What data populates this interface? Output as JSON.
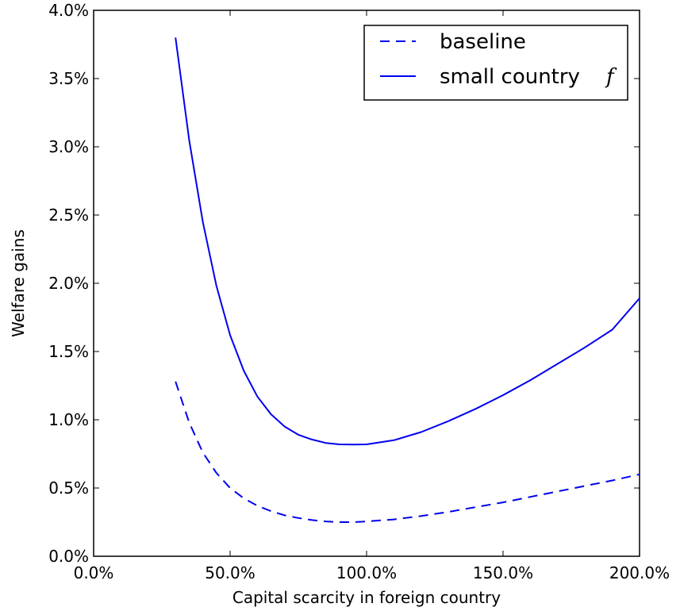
{
  "chart_data": {
    "type": "line",
    "xlabel": "Capital scarcity in foreign country",
    "ylabel": "Welfare gains",
    "xlim": [
      0,
      200
    ],
    "ylim": [
      0,
      4.0
    ],
    "x_ticks": [
      "0.0%",
      "50.0%",
      "100.0%",
      "150.0%",
      "200.0%"
    ],
    "y_ticks": [
      "0.0%",
      "0.5%",
      "1.0%",
      "1.5%",
      "2.0%",
      "2.5%",
      "3.0%",
      "3.5%",
      "4.0%"
    ],
    "legend_position": "top-right",
    "grid": false,
    "series": [
      {
        "name": "baseline",
        "style": "dashed",
        "color": "#0000ee",
        "x": [
          30,
          35,
          40,
          45,
          50,
          55,
          60,
          65,
          70,
          75,
          80,
          85,
          90,
          95,
          100,
          110,
          120,
          130,
          140,
          150,
          160,
          170,
          180,
          190,
          200
        ],
        "y": [
          1.28,
          0.98,
          0.76,
          0.61,
          0.5,
          0.425,
          0.37,
          0.33,
          0.3,
          0.28,
          0.265,
          0.255,
          0.25,
          0.25,
          0.255,
          0.27,
          0.295,
          0.325,
          0.36,
          0.395,
          0.435,
          0.475,
          0.515,
          0.555,
          0.6
        ]
      },
      {
        "name": "small country",
        "name_symbol": "f",
        "style": "solid",
        "color": "#0000ee",
        "x": [
          30,
          35,
          40,
          45,
          50,
          55,
          60,
          65,
          70,
          75,
          80,
          85,
          90,
          95,
          100,
          110,
          120,
          130,
          140,
          150,
          160,
          170,
          180,
          190,
          200
        ],
        "y": [
          3.8,
          3.05,
          2.45,
          1.98,
          1.62,
          1.36,
          1.17,
          1.04,
          0.95,
          0.89,
          0.855,
          0.83,
          0.82,
          0.818,
          0.82,
          0.85,
          0.91,
          0.99,
          1.08,
          1.18,
          1.29,
          1.41,
          1.53,
          1.66,
          1.89
        ]
      }
    ]
  }
}
